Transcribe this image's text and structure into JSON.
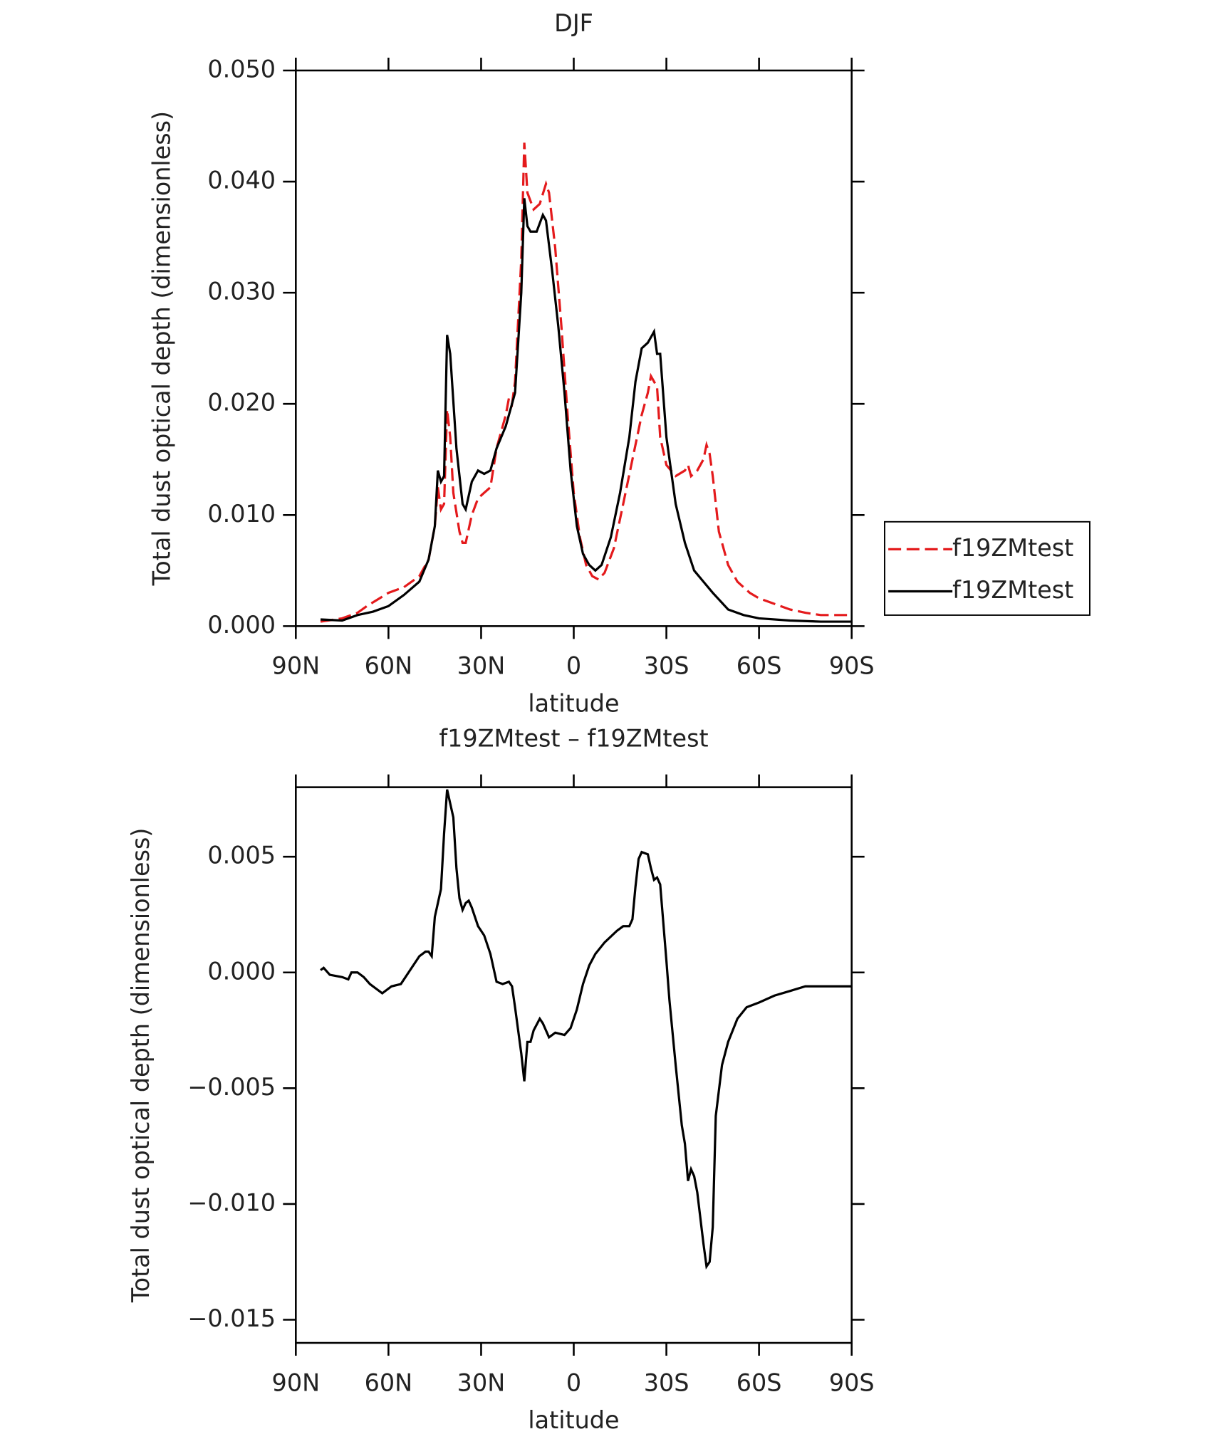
{
  "chart_data": [
    {
      "type": "line",
      "title": "DJF",
      "xlabel": "latitude",
      "ylabel": "Total dust optical depth (dimensionless)",
      "xlim": [
        90,
        -90
      ],
      "xticks": [
        {
          "value": 90,
          "label": "90N"
        },
        {
          "value": 60,
          "label": "60N"
        },
        {
          "value": 30,
          "label": "30N"
        },
        0,
        {
          "value": -30,
          "label": "30S"
        },
        {
          "value": -60,
          "label": "60S"
        },
        {
          "value": -90,
          "label": "90S"
        }
      ],
      "ylim": [
        0,
        0.05
      ],
      "yticks": [
        {
          "value": 0,
          "label": "0.000"
        },
        {
          "value": 0.01,
          "label": "0.010"
        },
        {
          "value": 0.02,
          "label": "0.020"
        },
        {
          "value": 0.03,
          "label": "0.030"
        },
        {
          "value": 0.04,
          "label": "0.040"
        },
        {
          "value": 0.05,
          "label": "0.050"
        }
      ],
      "legend": "right",
      "series": [
        {
          "name": "f19ZMtest",
          "color": "#e41a1c",
          "dash": true,
          "x": [
            82,
            75,
            70,
            67,
            60,
            55,
            50,
            47,
            45,
            44,
            43,
            42,
            41,
            40,
            39,
            37,
            36,
            35,
            33,
            31,
            29,
            27,
            25,
            22,
            21,
            20,
            19,
            17,
            16,
            15,
            13,
            11,
            9,
            8,
            6,
            4,
            2,
            0,
            -2,
            -4,
            -6,
            -8,
            -10,
            -13,
            -16,
            -19,
            -22,
            -24,
            -25,
            -26,
            -27,
            -28,
            -30,
            -33,
            -36,
            -37,
            -38,
            -40,
            -42,
            -43,
            -44,
            -45,
            -47,
            -50,
            -53,
            -57,
            -60,
            -65,
            -70,
            -75,
            -80,
            -90
          ],
          "values": [
            0.0004,
            0.0007,
            0.0012,
            0.0018,
            0.003,
            0.0035,
            0.0045,
            0.006,
            0.009,
            0.0125,
            0.0105,
            0.011,
            0.0195,
            0.017,
            0.012,
            0.0085,
            0.0075,
            0.0075,
            0.01,
            0.0115,
            0.012,
            0.0125,
            0.016,
            0.019,
            0.0205,
            0.02,
            0.022,
            0.033,
            0.0435,
            0.039,
            0.0375,
            0.038,
            0.0398,
            0.039,
            0.034,
            0.027,
            0.019,
            0.012,
            0.008,
            0.0055,
            0.0045,
            0.0042,
            0.0048,
            0.007,
            0.011,
            0.015,
            0.019,
            0.021,
            0.0225,
            0.022,
            0.0215,
            0.017,
            0.0145,
            0.0135,
            0.014,
            0.0145,
            0.0135,
            0.014,
            0.015,
            0.0163,
            0.0155,
            0.0135,
            0.0085,
            0.0055,
            0.004,
            0.003,
            0.0025,
            0.002,
            0.0015,
            0.0012,
            0.001,
            0.001
          ]
        },
        {
          "name": "f19ZMtest",
          "color": "#000000",
          "dash": false,
          "x": [
            82,
            75,
            70,
            65,
            60,
            55,
            50,
            47,
            45,
            44,
            43,
            42,
            41,
            40,
            38,
            36,
            35,
            33,
            31,
            29,
            27,
            25,
            22,
            20,
            19,
            17,
            16,
            15,
            14,
            12,
            10,
            9,
            7,
            5,
            3,
            1,
            -1,
            -3,
            -5,
            -7,
            -9,
            -12,
            -15,
            -18,
            -20,
            -22,
            -24,
            -25,
            -26,
            -27,
            -28,
            -30,
            -33,
            -36,
            -39,
            -42,
            -45,
            -50,
            -55,
            -60,
            -70,
            -80,
            -90
          ],
          "values": [
            0.0006,
            0.0005,
            0.001,
            0.0013,
            0.0018,
            0.0028,
            0.004,
            0.006,
            0.009,
            0.014,
            0.013,
            0.0135,
            0.0262,
            0.0245,
            0.016,
            0.011,
            0.0105,
            0.013,
            0.014,
            0.0137,
            0.014,
            0.016,
            0.018,
            0.02,
            0.021,
            0.03,
            0.0385,
            0.036,
            0.0355,
            0.0355,
            0.037,
            0.0365,
            0.032,
            0.027,
            0.021,
            0.014,
            0.009,
            0.0065,
            0.0055,
            0.005,
            0.0055,
            0.008,
            0.012,
            0.017,
            0.022,
            0.025,
            0.0255,
            0.026,
            0.0265,
            0.0245,
            0.0245,
            0.017,
            0.011,
            0.0075,
            0.005,
            0.004,
            0.003,
            0.0015,
            0.001,
            0.0007,
            0.0005,
            0.0004,
            0.0004
          ]
        }
      ]
    },
    {
      "type": "line",
      "title": "f19ZMtest – f19ZMtest",
      "xlabel": "latitude",
      "ylabel": "Total dust optical depth (dimensionless)",
      "xlim": [
        90,
        -90
      ],
      "xticks": [
        {
          "value": 90,
          "label": "90N"
        },
        {
          "value": 60,
          "label": "60N"
        },
        {
          "value": 30,
          "label": "30N"
        },
        0,
        {
          "value": -30,
          "label": "30S"
        },
        {
          "value": -60,
          "label": "60S"
        },
        {
          "value": -90,
          "label": "90S"
        }
      ],
      "ylim": [
        -0.016,
        0.008
      ],
      "yticks": [
        {
          "value": -0.015,
          "label": "−0.015"
        },
        {
          "value": -0.01,
          "label": "−0.010"
        },
        {
          "value": -0.005,
          "label": "−0.005"
        },
        {
          "value": 0,
          "label": "0.000"
        },
        {
          "value": 0.005,
          "label": "0.005"
        }
      ],
      "series": [
        {
          "color": "#000000",
          "dash": false,
          "x": [
            82,
            81,
            79,
            75,
            73,
            72,
            70,
            68,
            66,
            62,
            59,
            56,
            53,
            50,
            48,
            47,
            46,
            45,
            43,
            42,
            41,
            39,
            38,
            37,
            36,
            35,
            34,
            33,
            31,
            29,
            27,
            25,
            23,
            21,
            20,
            19,
            17,
            16,
            15,
            14,
            13,
            11,
            10,
            8,
            6,
            3,
            1,
            -1,
            -3,
            -5,
            -7,
            -10,
            -14,
            -16,
            -18,
            -19,
            -20,
            -21,
            -22,
            -24,
            -25,
            -26,
            -27,
            -28,
            -30,
            -31,
            -33,
            -35,
            -36,
            -37,
            -38,
            -39,
            -40,
            -42,
            -43,
            -44,
            -45,
            -46,
            -48,
            -50,
            -53,
            -56,
            -60,
            -65,
            -70,
            -75,
            -80,
            -90
          ],
          "values": [
            0.0001,
            0.0002,
            -0.0001,
            -0.0002,
            -0.0003,
            0.0,
            0.0,
            -0.0002,
            -0.0005,
            -0.0009,
            -0.0006,
            -0.0005,
            0.0001,
            0.0007,
            0.0009,
            0.0009,
            0.0007,
            0.0024,
            0.0036,
            0.006,
            0.0079,
            0.0067,
            0.0045,
            0.0032,
            0.0027,
            0.003,
            0.0031,
            0.0028,
            0.002,
            0.0016,
            0.0008,
            -0.0004,
            -0.0005,
            -0.0004,
            -0.0006,
            -0.0015,
            -0.0035,
            -0.0047,
            -0.003,
            -0.003,
            -0.0025,
            -0.002,
            -0.0022,
            -0.0028,
            -0.0026,
            -0.0027,
            -0.0024,
            -0.0016,
            -0.0005,
            0.0003,
            0.0008,
            0.0013,
            0.0018,
            0.002,
            0.002,
            0.0023,
            0.0037,
            0.0049,
            0.0052,
            0.0051,
            0.0045,
            0.004,
            0.0041,
            0.0038,
            0.0005,
            -0.0012,
            -0.004,
            -0.0066,
            -0.0074,
            -0.009,
            -0.0085,
            -0.0088,
            -0.0095,
            -0.0117,
            -0.0127,
            -0.0125,
            -0.011,
            -0.0062,
            -0.004,
            -0.003,
            -0.002,
            -0.0015,
            -0.0013,
            -0.001,
            -0.0008,
            -0.0006,
            -0.0006,
            -0.0006
          ]
        }
      ]
    }
  ]
}
